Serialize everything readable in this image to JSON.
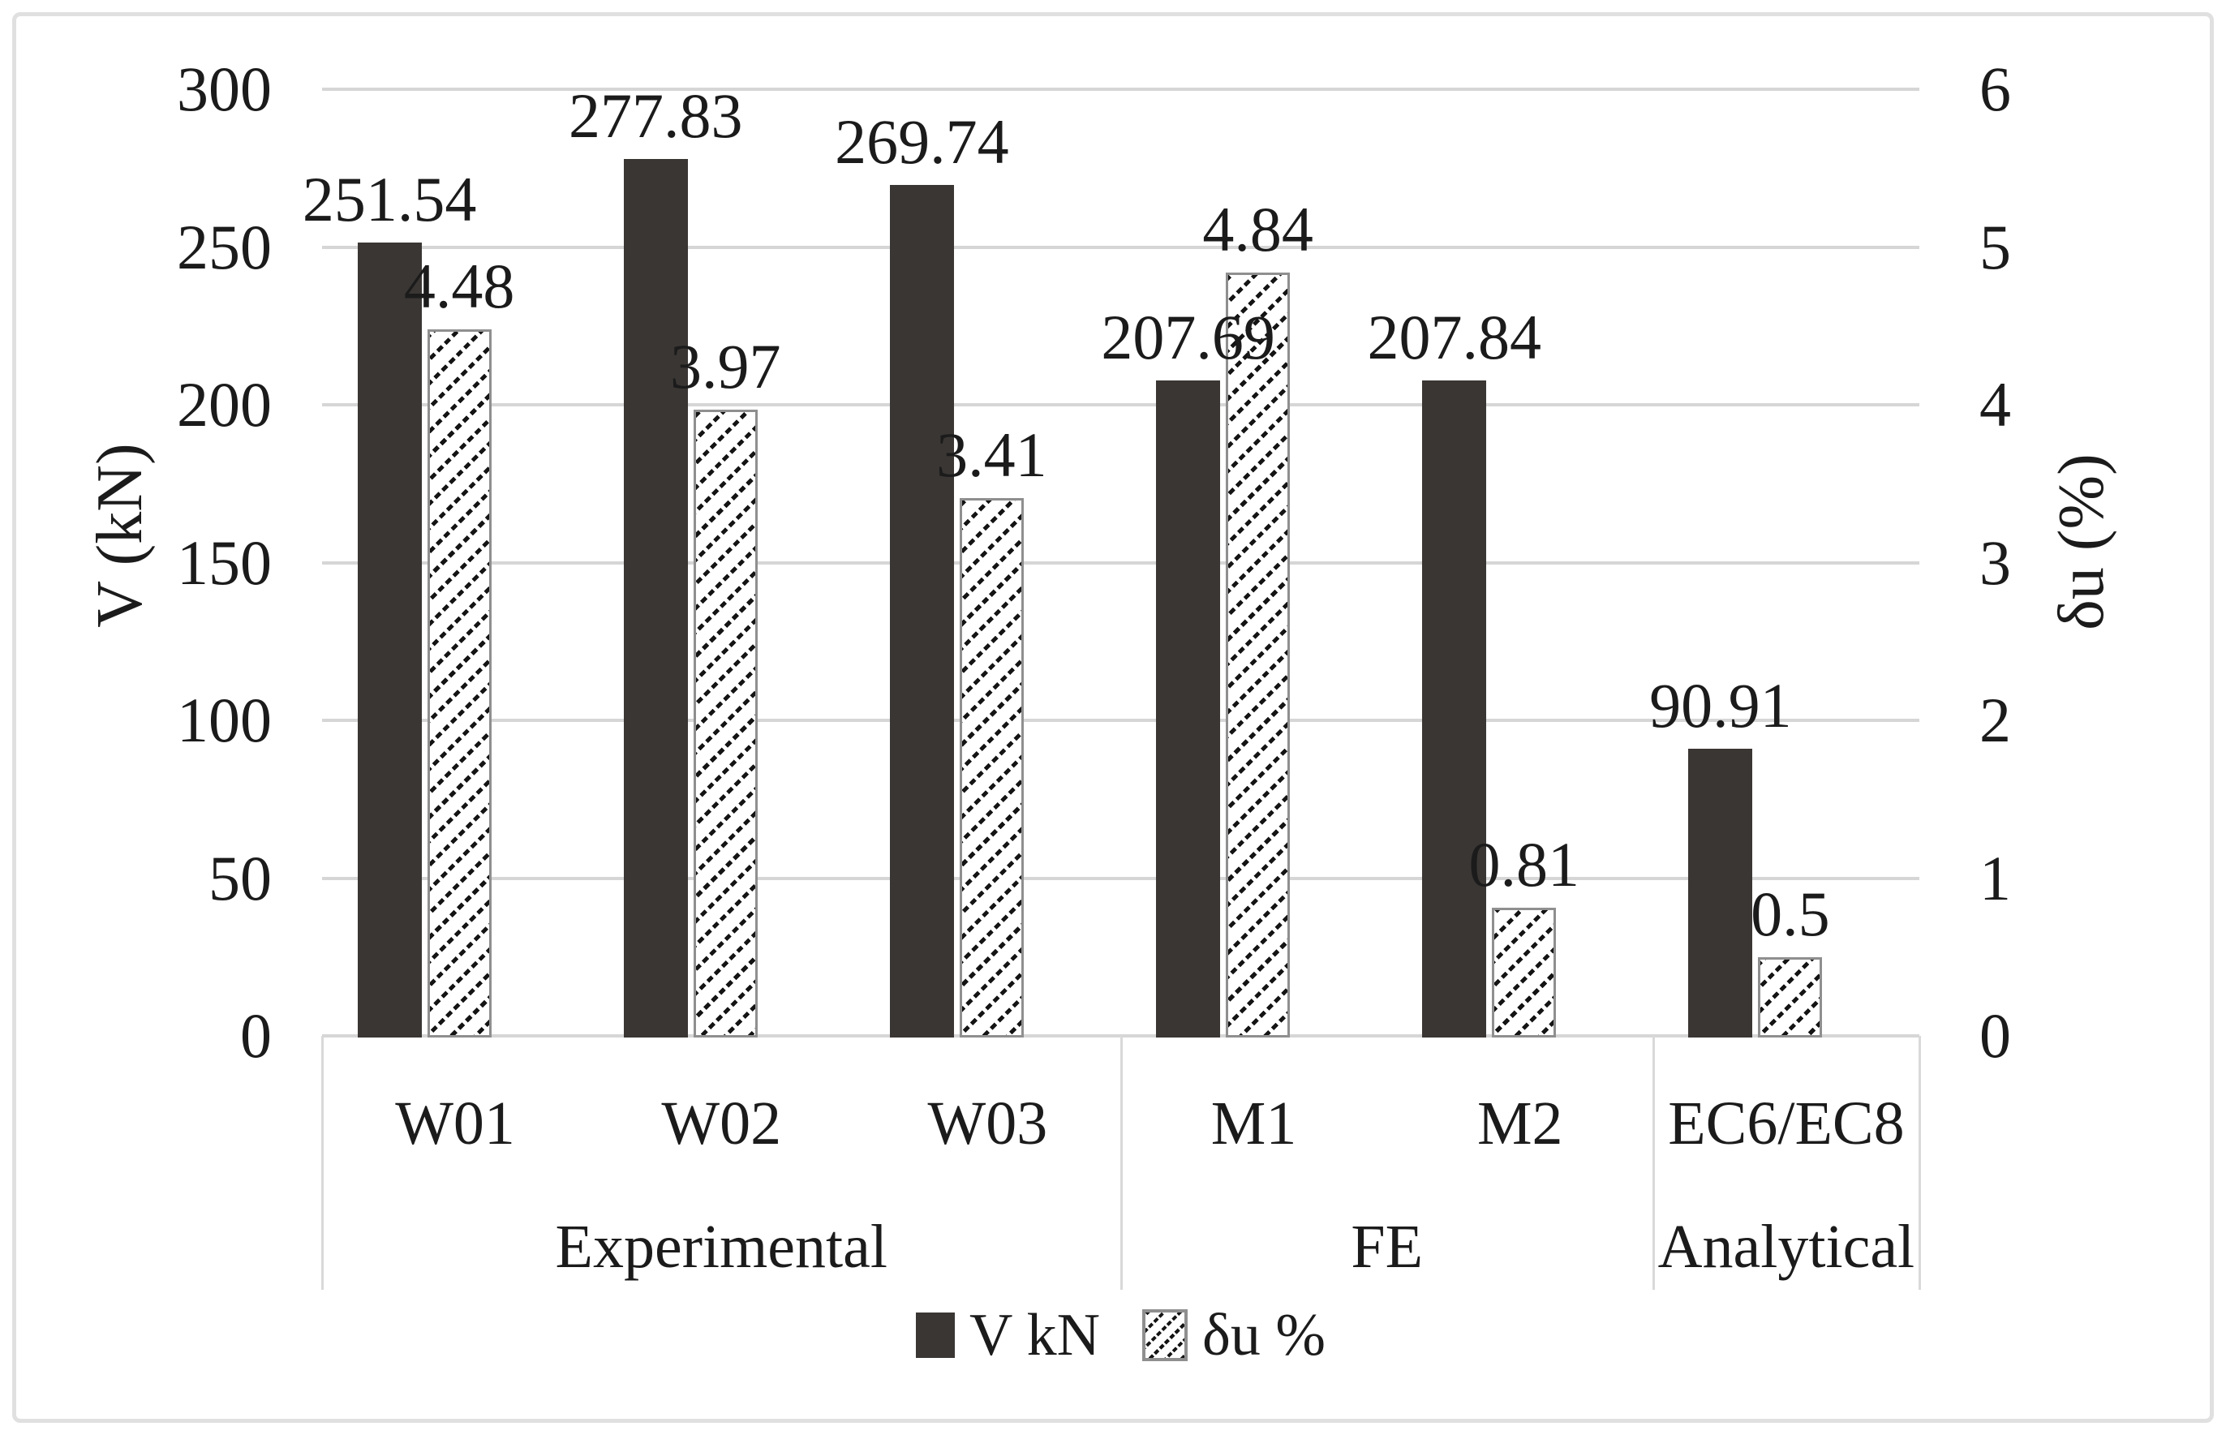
{
  "chart_data": {
    "type": "bar",
    "title": "",
    "categories": [
      "W01",
      "W02",
      "W03",
      "M1",
      "M2",
      "EC6/EC8"
    ],
    "groups": [
      {
        "label": "Experimental",
        "span": 3
      },
      {
        "label": "FE",
        "span": 2
      },
      {
        "label": "Analytical",
        "span": 1
      }
    ],
    "series": [
      {
        "name": "V kN",
        "axis": "left",
        "style": "solid",
        "values": [
          251.54,
          277.83,
          269.74,
          207.69,
          207.84,
          90.91
        ],
        "labels": [
          "251.54",
          "277.83",
          "269.74",
          "207.69",
          "207.84",
          "90.91"
        ]
      },
      {
        "name": "δu %",
        "axis": "right",
        "style": "hatched",
        "values": [
          4.48,
          3.97,
          3.41,
          4.84,
          0.81,
          0.5
        ],
        "labels": [
          "4.48",
          "3.97",
          "3.41",
          "4.84",
          "0.81",
          "0.5"
        ]
      }
    ],
    "left_axis": {
      "label": "V (kN)",
      "min": 0,
      "max": 300,
      "step": 50,
      "ticks": [
        "300",
        "250",
        "200",
        "150",
        "100",
        "50",
        "0"
      ]
    },
    "right_axis": {
      "label": "δu (%)",
      "min": 0,
      "max": 6,
      "step": 1,
      "ticks": [
        "6",
        "5",
        "4",
        "3",
        "2",
        "1",
        "0"
      ]
    },
    "legend": [
      {
        "label": "V kN",
        "style": "solid"
      },
      {
        "label": "δu %",
        "style": "hatched"
      }
    ],
    "grid": true,
    "legend_position": "bottom"
  },
  "colors": {
    "bar_dark": "#3a3634",
    "hatch_ink": "#141414",
    "hatch_border": "#8f8f8f",
    "grid": "#d6d6d6",
    "table_border": "#d9d9d9",
    "frame_border": "#e0e0e0",
    "text": "#1b1b1b",
    "background": "#ffffff"
  }
}
